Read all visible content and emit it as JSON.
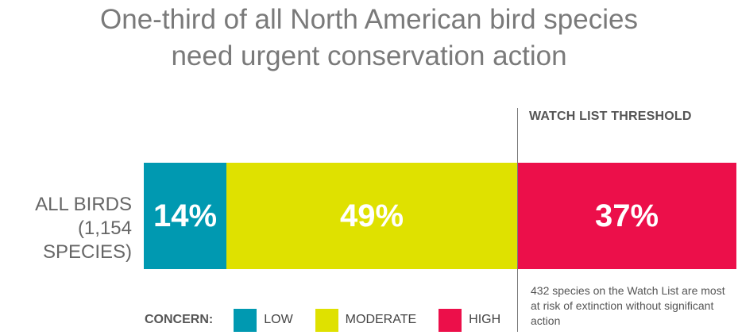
{
  "chart_data": {
    "type": "bar",
    "orientation": "horizontal-stacked",
    "title": "One-third of all North American bird species\nneed urgent conservation action",
    "categories": [
      "ALL BIRDS\n(1,154 SPECIES)"
    ],
    "series": [
      {
        "name": "LOW",
        "values": [
          14
        ],
        "label": "14%",
        "color": "#0099b1"
      },
      {
        "name": "MODERATE",
        "values": [
          49
        ],
        "label": "49%",
        "color": "#dfe100"
      },
      {
        "name": "HIGH",
        "values": [
          37
        ],
        "label": "37%",
        "color": "#ec0f4a"
      }
    ],
    "xlim": [
      0,
      100
    ],
    "threshold": {
      "label": "WATCH LIST THRESHOLD",
      "value": 63
    },
    "annotation": "432 species on the Watch List are most at risk of extinction without significant action",
    "legend": {
      "title": "CONCERN:",
      "placement": "bottom-left"
    }
  }
}
